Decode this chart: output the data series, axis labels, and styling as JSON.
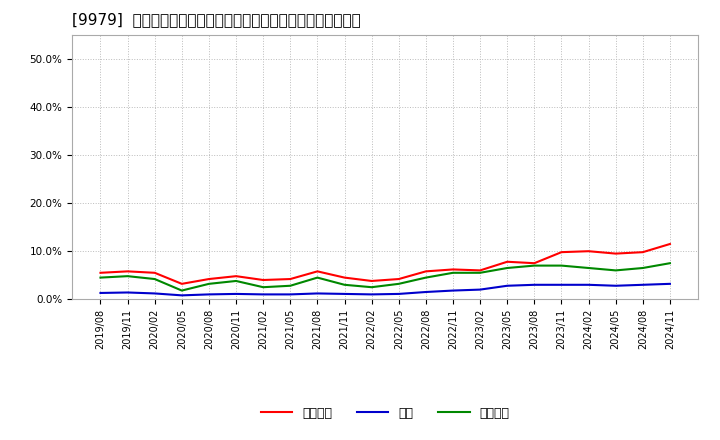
{
  "title": "[9979]  売上債権、在庫、買入債務の総資産に対する比率の推移",
  "dates": [
    "2019/08",
    "2019/11",
    "2020/02",
    "2020/05",
    "2020/08",
    "2020/11",
    "2021/02",
    "2021/05",
    "2021/08",
    "2021/11",
    "2022/02",
    "2022/05",
    "2022/08",
    "2022/11",
    "2023/02",
    "2023/05",
    "2023/08",
    "2023/11",
    "2024/02",
    "2024/05",
    "2024/08",
    "2024/11"
  ],
  "urikake": [
    5.5,
    5.8,
    5.5,
    3.2,
    4.2,
    4.8,
    4.0,
    4.2,
    5.8,
    4.5,
    3.8,
    4.2,
    5.8,
    6.2,
    6.0,
    7.8,
    7.5,
    9.8,
    10.0,
    9.5,
    9.8,
    11.5
  ],
  "zaiko": [
    1.3,
    1.4,
    1.2,
    0.8,
    1.0,
    1.1,
    1.0,
    1.0,
    1.2,
    1.1,
    1.0,
    1.1,
    1.5,
    1.8,
    2.0,
    2.8,
    3.0,
    3.0,
    3.0,
    2.8,
    3.0,
    3.2
  ],
  "kainyu": [
    4.5,
    4.8,
    4.2,
    1.8,
    3.2,
    3.8,
    2.5,
    2.8,
    4.5,
    3.0,
    2.5,
    3.2,
    4.5,
    5.5,
    5.5,
    6.5,
    7.0,
    7.0,
    6.5,
    6.0,
    6.5,
    7.5
  ],
  "urikake_color": "#ff0000",
  "zaiko_color": "#0000cc",
  "kainyu_color": "#008800",
  "ylim_min": 0,
  "ylim_max": 55,
  "yticks": [
    0,
    10,
    20,
    30,
    40,
    50
  ],
  "ytick_labels": [
    "0.0%",
    "10.0%",
    "20.0%",
    "30.0%",
    "40.0%",
    "50.0%"
  ],
  "background_color": "#ffffff",
  "grid_color": "#bbbbbb",
  "legend_labels": [
    "売上債権",
    "在庫",
    "買入債務"
  ],
  "title_fontsize": 11,
  "tick_fontsize": 7.5,
  "legend_fontsize": 9
}
